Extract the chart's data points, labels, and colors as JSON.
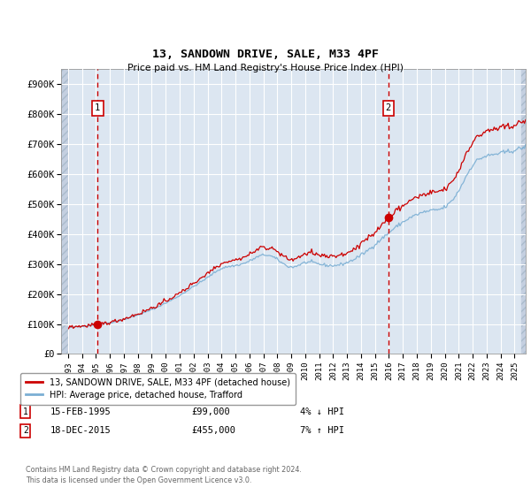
{
  "title": "13, SANDOWN DRIVE, SALE, M33 4PF",
  "subtitle": "Price paid vs. HM Land Registry's House Price Index (HPI)",
  "legend_line1": "13, SANDOWN DRIVE, SALE, M33 4PF (detached house)",
  "legend_line2": "HPI: Average price, detached house, Trafford",
  "sale_color": "#cc0000",
  "hpi_color": "#7bafd4",
  "background_color": "#dce6f1",
  "hatch_color": "#c4cfe0",
  "grid_color": "#ffffff",
  "ylim": [
    0,
    950000
  ],
  "yticks": [
    0,
    100000,
    200000,
    300000,
    400000,
    500000,
    600000,
    700000,
    800000,
    900000
  ],
  "ytick_labels": [
    "£0",
    "£100K",
    "£200K",
    "£300K",
    "£400K",
    "£500K",
    "£600K",
    "£700K",
    "£800K",
    "£900K"
  ],
  "xlim_start": 1992.5,
  "xlim_end": 2025.8,
  "xticks": [
    1993,
    1994,
    1995,
    1996,
    1997,
    1998,
    1999,
    2000,
    2001,
    2002,
    2003,
    2004,
    2005,
    2006,
    2007,
    2008,
    2009,
    2010,
    2011,
    2012,
    2013,
    2014,
    2015,
    2016,
    2017,
    2018,
    2019,
    2020,
    2021,
    2022,
    2023,
    2024,
    2025
  ],
  "sale1_year": 1995.12,
  "sale1_price": 99000,
  "sale2_year": 2015.96,
  "sale2_price": 455000,
  "footer": "Contains HM Land Registry data © Crown copyright and database right 2024.\nThis data is licensed under the Open Government Licence v3.0.",
  "table_row1_label": "1",
  "table_row1_date": "15-FEB-1995",
  "table_row1_price": "£99,000",
  "table_row1_hpi": "4% ↓ HPI",
  "table_row2_label": "2",
  "table_row2_date": "18-DEC-2015",
  "table_row2_price": "£455,000",
  "table_row2_hpi": "7% ↑ HPI"
}
